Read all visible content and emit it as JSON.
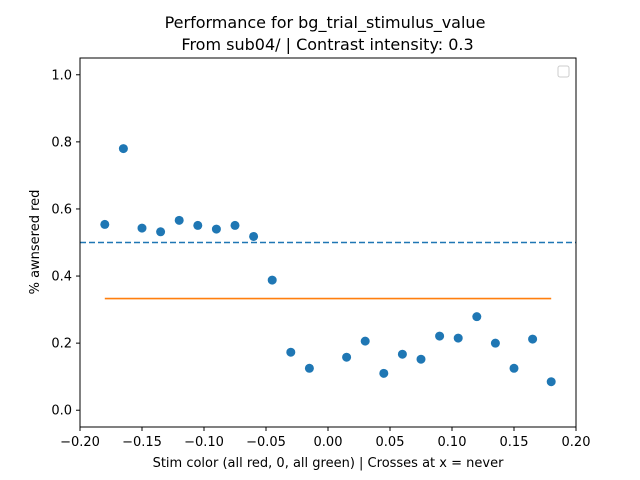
{
  "chart_data": {
    "type": "scatter",
    "title_line1": "Performance for bg_trial_stimulus_value",
    "title_line2": " From sub04/ | Contrast intensity: 0.3",
    "xlabel": "Stim color (all red, 0, all green) | Crosses at x = never",
    "ylabel": "% awnsered red",
    "xlim": [
      -0.2,
      0.2
    ],
    "ylim": [
      -0.05,
      1.05
    ],
    "xticks": [
      "-0.20",
      "-0.15",
      "-0.10",
      "-0.05",
      "0.00",
      "0.05",
      "0.10",
      "0.15",
      "0.20"
    ],
    "yticks": [
      "0.0",
      "0.2",
      "0.4",
      "0.6",
      "0.8",
      "1.0"
    ],
    "grid": false,
    "legend": "top-right, empty",
    "series": [
      {
        "kind": "scatter",
        "color": "#1f77b4",
        "x": [
          -0.18,
          -0.165,
          -0.15,
          -0.135,
          -0.12,
          -0.105,
          -0.09,
          -0.075,
          -0.06,
          -0.045,
          -0.03,
          -0.015,
          0.015,
          0.03,
          0.045,
          0.06,
          0.075,
          0.09,
          0.105,
          0.12,
          0.135,
          0.15,
          0.165,
          0.18
        ],
        "y": [
          0.554,
          0.78,
          0.543,
          0.532,
          0.566,
          0.551,
          0.54,
          0.551,
          0.518,
          0.388,
          0.173,
          0.125,
          0.158,
          0.206,
          0.11,
          0.167,
          0.152,
          0.221,
          0.215,
          0.279,
          0.2,
          0.125,
          0.212,
          0.085
        ]
      },
      {
        "kind": "hline-dashed",
        "color": "#1f77b4",
        "y": 0.5
      },
      {
        "kind": "line",
        "color": "#ff7f0e",
        "x": [
          -0.18,
          0.18
        ],
        "y": [
          0.333,
          0.333
        ]
      }
    ]
  }
}
